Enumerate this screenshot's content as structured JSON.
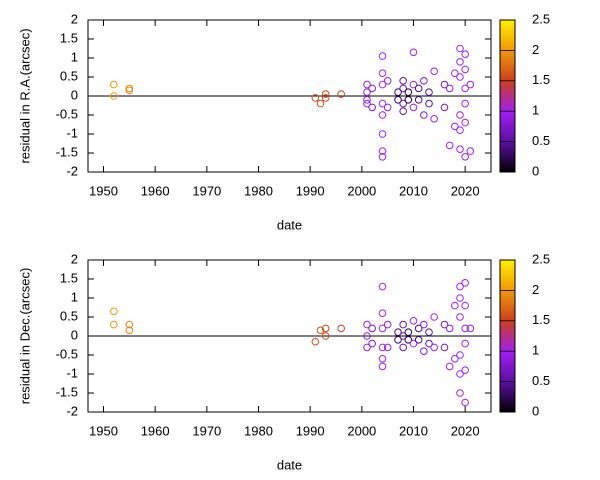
{
  "chart_data": [
    {
      "type": "scatter",
      "xlabel": "date",
      "ylabel": "residual in R.A.(arcsec)",
      "xlim": [
        1947,
        2025
      ],
      "ylim": [
        -2,
        2
      ],
      "xticks": [
        1950,
        1960,
        1970,
        1980,
        1990,
        2000,
        2010,
        2020
      ],
      "yticks": [
        -2,
        -1.5,
        -1,
        -0.5,
        0,
        0.5,
        1,
        1.5,
        2
      ],
      "hline": 0,
      "clim": [
        0,
        2.5
      ],
      "cticks": [
        0,
        0.5,
        1,
        1.5,
        2,
        2.5
      ],
      "colormap": [
        "#000000",
        "#5a0fa0",
        "#a020f0",
        "#c8401e",
        "#f0960a",
        "#ffee00"
      ],
      "x": [
        1952,
        1952,
        1955,
        1955,
        1991,
        1992,
        1993,
        1993,
        1996,
        2001,
        2001,
        2001,
        2001,
        2002,
        2002,
        2004,
        2004,
        2004,
        2004,
        2004,
        2004,
        2004,
        2004,
        2005,
        2005,
        2007,
        2007,
        2008,
        2008,
        2008,
        2008,
        2009,
        2009,
        2010,
        2010,
        2010,
        2011,
        2011,
        2012,
        2012,
        2013,
        2013,
        2014,
        2014,
        2016,
        2016,
        2017,
        2017,
        2018,
        2018,
        2019,
        2019,
        2019,
        2019,
        2019,
        2019,
        2020,
        2020,
        2020,
        2020,
        2020,
        2020,
        2021,
        2021
      ],
      "y": [
        0.3,
        0.0,
        0.2,
        0.15,
        -0.05,
        -0.2,
        0.05,
        -0.05,
        0.05,
        0.3,
        0.1,
        -0.1,
        -0.2,
        0.2,
        -0.3,
        1.05,
        0.6,
        0.3,
        -0.2,
        -0.5,
        -1.0,
        -1.45,
        -1.6,
        0.4,
        -0.3,
        0.1,
        -0.1,
        0.4,
        0.2,
        -0.2,
        -0.4,
        0.1,
        -0.1,
        1.15,
        0.3,
        -0.3,
        0.2,
        -0.1,
        0.4,
        -0.5,
        0.1,
        -0.2,
        0.65,
        -0.6,
        0.3,
        -0.3,
        -1.3,
        0.2,
        0.6,
        -0.8,
        1.25,
        0.9,
        0.5,
        -0.5,
        -0.9,
        -1.4,
        1.1,
        0.7,
        0.2,
        -0.2,
        -0.7,
        -1.6,
        -1.45,
        0.3
      ],
      "c": [
        2.0,
        2.0,
        1.9,
        1.9,
        1.6,
        1.6,
        1.55,
        1.55,
        1.5,
        0.9,
        0.9,
        0.9,
        0.9,
        0.8,
        0.8,
        1.0,
        1.0,
        1.0,
        1.0,
        1.0,
        1.0,
        1.0,
        1.0,
        0.9,
        0.9,
        0.3,
        0.3,
        0.6,
        0.6,
        0.6,
        0.6,
        0.2,
        0.2,
        1.0,
        1.0,
        1.0,
        0.4,
        0.4,
        0.8,
        0.8,
        0.5,
        0.5,
        1.0,
        1.0,
        0.7,
        0.7,
        1.0,
        0.9,
        1.0,
        1.0,
        1.0,
        1.0,
        1.0,
        1.0,
        1.0,
        1.0,
        1.0,
        1.0,
        1.0,
        1.0,
        1.0,
        1.0,
        1.0,
        0.9
      ]
    },
    {
      "type": "scatter",
      "xlabel": "date",
      "ylabel": "residual in Dec.(arcsec)",
      "xlim": [
        1947,
        2025
      ],
      "ylim": [
        -2,
        2
      ],
      "xticks": [
        1950,
        1960,
        1970,
        1980,
        1990,
        2000,
        2010,
        2020
      ],
      "yticks": [
        -2,
        -1.5,
        -1,
        -0.5,
        0,
        0.5,
        1,
        1.5,
        2
      ],
      "hline": 0,
      "clim": [
        0,
        2.5
      ],
      "cticks": [
        0,
        0.5,
        1,
        1.5,
        2,
        2.5
      ],
      "colormap": [
        "#000000",
        "#5a0fa0",
        "#a020f0",
        "#c8401e",
        "#f0960a",
        "#ffee00"
      ],
      "x": [
        1952,
        1952,
        1955,
        1955,
        1991,
        1992,
        1993,
        1993,
        1996,
        2001,
        2001,
        2001,
        2002,
        2002,
        2004,
        2004,
        2004,
        2004,
        2004,
        2004,
        2005,
        2005,
        2007,
        2007,
        2008,
        2008,
        2008,
        2009,
        2009,
        2010,
        2010,
        2011,
        2011,
        2012,
        2012,
        2013,
        2013,
        2014,
        2014,
        2016,
        2016,
        2017,
        2017,
        2018,
        2018,
        2019,
        2019,
        2019,
        2019,
        2019,
        2019,
        2020,
        2020,
        2020,
        2020,
        2020,
        2020,
        2021
      ],
      "y": [
        0.65,
        0.3,
        0.3,
        0.15,
        -0.15,
        0.15,
        0.2,
        0.0,
        0.2,
        0.3,
        0.0,
        -0.3,
        0.2,
        -0.2,
        1.3,
        0.6,
        0.2,
        -0.3,
        -0.6,
        -0.8,
        0.3,
        -0.3,
        0.1,
        -0.1,
        0.3,
        0.0,
        -0.3,
        0.1,
        -0.1,
        0.4,
        -0.2,
        0.2,
        -0.1,
        0.3,
        -0.4,
        0.1,
        -0.2,
        0.5,
        -0.3,
        0.3,
        -0.3,
        -0.8,
        0.2,
        0.8,
        -0.6,
        1.3,
        1.0,
        0.5,
        -0.5,
        -1.0,
        -1.5,
        1.4,
        0.8,
        0.2,
        -0.2,
        -0.9,
        -1.75,
        0.2
      ],
      "c": [
        2.0,
        2.0,
        1.9,
        1.9,
        1.6,
        1.6,
        1.55,
        1.55,
        1.5,
        0.9,
        0.9,
        0.9,
        0.8,
        0.8,
        1.0,
        1.0,
        1.0,
        1.0,
        1.0,
        1.0,
        0.9,
        0.9,
        0.3,
        0.3,
        0.6,
        0.6,
        0.6,
        0.2,
        0.2,
        1.0,
        1.0,
        0.4,
        0.4,
        0.8,
        0.8,
        0.5,
        0.5,
        1.0,
        1.0,
        0.7,
        0.7,
        1.0,
        0.9,
        1.0,
        1.0,
        1.0,
        1.0,
        1.0,
        1.0,
        1.0,
        1.0,
        1.0,
        1.0,
        1.0,
        1.0,
        1.0,
        1.0,
        0.9
      ]
    }
  ]
}
